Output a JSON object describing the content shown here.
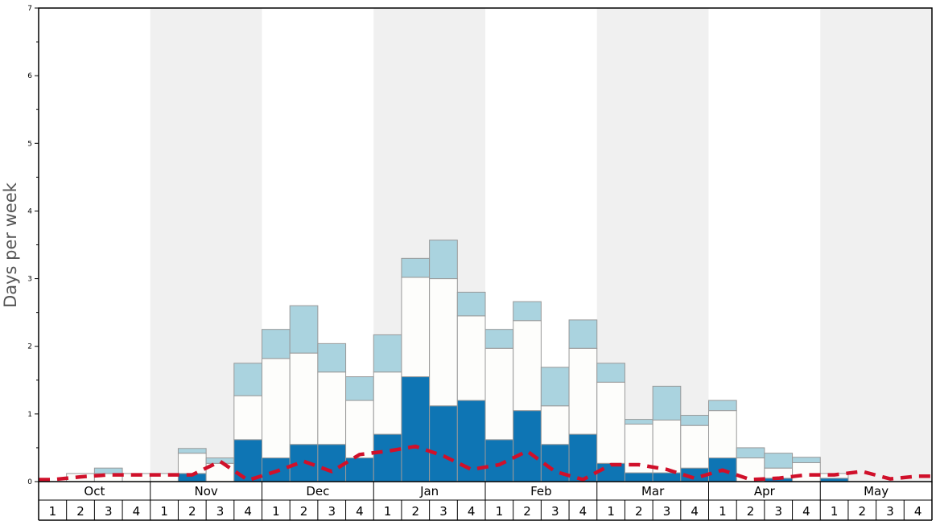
{
  "chart_data": {
    "type": "bar",
    "ylabel": "Days per week",
    "ylim": [
      0,
      7
    ],
    "y_ticks": [
      "0",
      "1",
      "2",
      "3",
      "4",
      "5",
      "6",
      "7"
    ],
    "months": [
      "Oct",
      "Nov",
      "Dec",
      "Jan",
      "Feb",
      "Mar",
      "Apr",
      "May"
    ],
    "week_labels": [
      "1",
      "2",
      "3",
      "4"
    ],
    "stacked": true,
    "series": [
      {
        "values": [
          0,
          0,
          0,
          0,
          0,
          0.12,
          0,
          0.62,
          0.35,
          0.55,
          0.55,
          0.35,
          0.7,
          1.55,
          1.12,
          1.2,
          0.62,
          1.05,
          0.55,
          0.7,
          0.27,
          0.13,
          0.13,
          0.2,
          0.35,
          0,
          0.05,
          0,
          0.05,
          0,
          0,
          0
        ],
        "color": "#0e75b4"
      },
      {
        "values": [
          0,
          0.12,
          0.12,
          0.12,
          0.12,
          0.3,
          0.27,
          0.65,
          1.47,
          1.35,
          1.07,
          0.85,
          0.92,
          1.47,
          1.88,
          1.25,
          1.35,
          1.33,
          0.57,
          1.27,
          1.2,
          0.72,
          0.78,
          0.63,
          0.7,
          0.35,
          0.15,
          0.28,
          0.07,
          0,
          0,
          0
        ],
        "color": "#fdfdfb"
      },
      {
        "values": [
          0,
          0,
          0.08,
          0,
          0,
          0.07,
          0.08,
          0.48,
          0.43,
          0.7,
          0.42,
          0.35,
          0.55,
          0.28,
          0.57,
          0.35,
          0.28,
          0.28,
          0.57,
          0.42,
          0.28,
          0.07,
          0.5,
          0.15,
          0.15,
          0.15,
          0.22,
          0.08,
          0,
          0,
          0,
          0
        ],
        "color": "#aad3df"
      }
    ],
    "line": {
      "values": [
        0.03,
        0.07,
        0.1,
        0.1,
        0.1,
        0.1,
        0.3,
        0.02,
        0.15,
        0.3,
        0.15,
        0.4,
        0.45,
        0.52,
        0.38,
        0.18,
        0.25,
        0.45,
        0.15,
        0.03,
        0.25,
        0.25,
        0.18,
        0.05,
        0.17,
        0.03,
        0.05,
        0.1,
        0.1,
        0.15,
        0.04,
        0.08
      ],
      "color": "#d0102a",
      "style": "dashed"
    },
    "shaded_months": [
      "Nov",
      "Jan",
      "Mar",
      "May"
    ]
  }
}
